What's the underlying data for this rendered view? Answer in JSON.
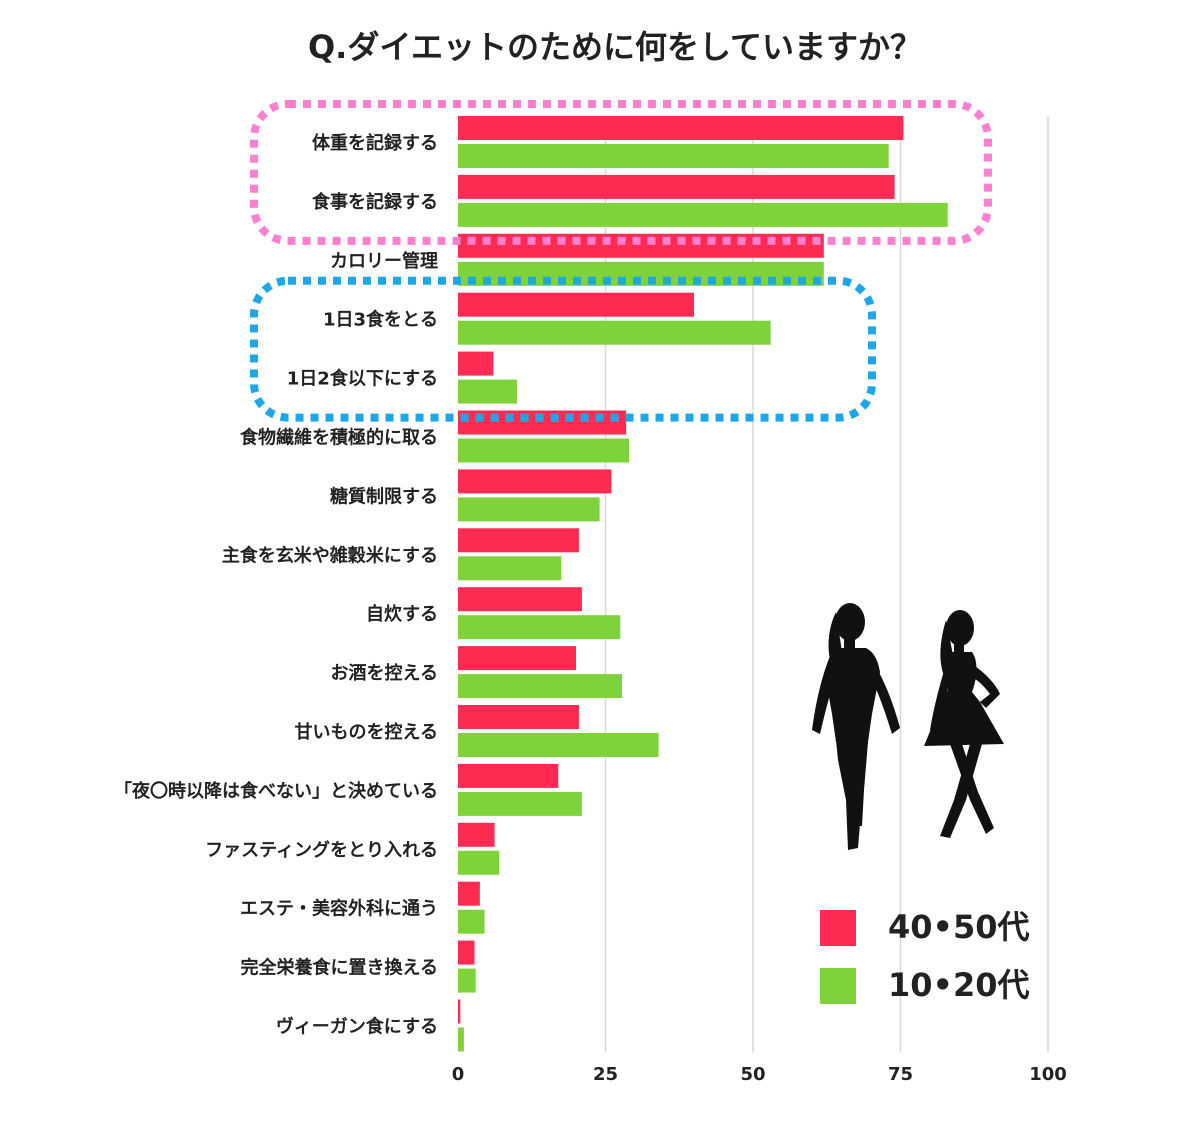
{
  "chart_data": {
    "type": "bar",
    "orientation": "horizontal",
    "title": "Q.ダイエットのために何をしていますか？",
    "categories": [
      "体重を記録する",
      "食事を記録する",
      "カロリー管理",
      "1日3食をとる",
      "1日2食以下にする",
      "食物繊維を積極的に取る",
      "糖質制限する",
      "主食を玄米や雑穀米にする",
      "自炊する",
      "お酒を控える",
      "甘いものを控える",
      "「夜〇時以降は食べない」と決めている",
      "ファスティングをとり入れる",
      "エステ・美容外科に通う",
      "完全栄養食に置き換える",
      "ヴィーガン食にする"
    ],
    "series": [
      {
        "name": "40•50代",
        "color": "#ff2b52",
        "values": [
          75.5,
          74,
          62,
          40,
          6,
          28.5,
          26,
          20.5,
          21,
          20,
          20.5,
          17,
          6.2,
          3.7,
          2.8,
          0.4
        ]
      },
      {
        "name": "10•20代",
        "color": "#7ed23a",
        "values": [
          73,
          83,
          62,
          53,
          10,
          29,
          24,
          17.5,
          27.5,
          27.8,
          34,
          21,
          7,
          4.5,
          3,
          1
        ]
      }
    ],
    "xlim": [
      0,
      100
    ],
    "xticks": [
      0,
      25,
      50,
      75,
      100
    ],
    "grid": true,
    "legend_position": "bottom-right",
    "highlight_groups": [
      {
        "color": "#ff7fd0",
        "categories": [
          "体重を記録する",
          "食事を記録する"
        ]
      },
      {
        "color": "#1ea7e8",
        "categories": [
          "1日3食をとる",
          "1日2食以下にする"
        ]
      }
    ]
  },
  "decorations": {
    "silhouette_icon": "walking-women-silhouettes-icon"
  }
}
